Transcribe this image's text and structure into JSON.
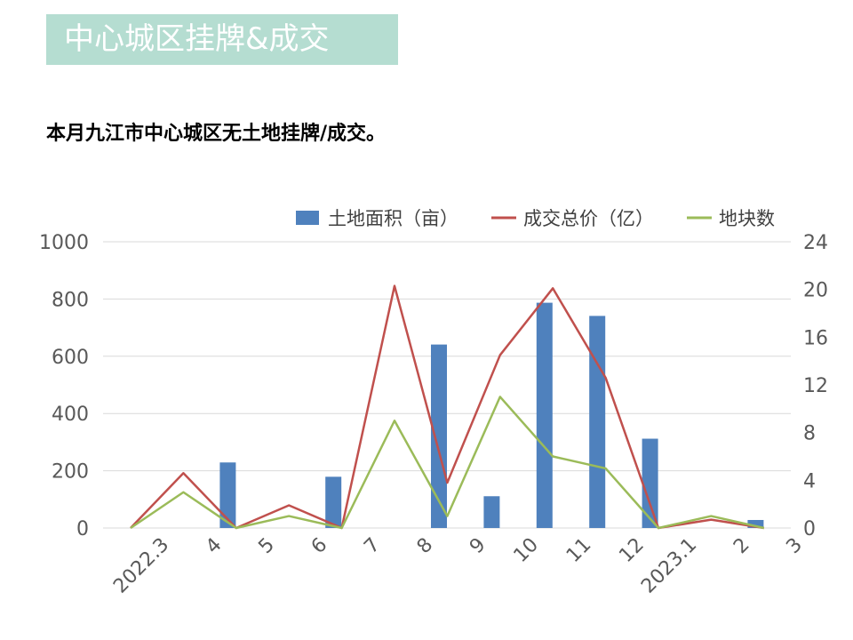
{
  "header": {
    "title": "中心城区挂牌&成交"
  },
  "summary": {
    "text": "本月九江市中心城区无土地挂牌/成交。"
  },
  "colors": {
    "banner": "#b5ddd1",
    "bar": "#4f81bd",
    "price_line": "#c0504d",
    "count_line": "#9bbb59",
    "grid": "#d9d9d9"
  },
  "chart_data": {
    "type": "bar",
    "categories": [
      "2022.3",
      "4",
      "5",
      "6",
      "7",
      "8",
      "9",
      "10",
      "11",
      "12",
      "2023.1",
      "2",
      "3"
    ],
    "series": [
      {
        "name": "土地面积（亩）",
        "type": "bar",
        "axis": "left",
        "values": [
          0,
          229,
          0,
          179,
          0,
          641,
          111,
          787,
          741,
          312,
          0,
          28,
          0
        ]
      },
      {
        "name": "成交总价（亿）",
        "type": "line",
        "axis": "right",
        "values": [
          0,
          4.6,
          0,
          1.9,
          0,
          20.3,
          3.8,
          14.5,
          20.1,
          12.6,
          0,
          0.7,
          0
        ]
      },
      {
        "name": "地块数",
        "type": "line",
        "axis": "right",
        "values": [
          0,
          3,
          0,
          1,
          0,
          9,
          1,
          11,
          6,
          5,
          0,
          1,
          0
        ]
      }
    ],
    "y_left": {
      "min": 0,
      "max": 1000,
      "ticks": [
        0,
        200,
        400,
        600,
        800,
        1000
      ]
    },
    "y_right": {
      "min": 0,
      "max": 24,
      "ticks": [
        0,
        4,
        8,
        12,
        16,
        20,
        24
      ]
    },
    "legend": "top-right",
    "grid": true
  }
}
